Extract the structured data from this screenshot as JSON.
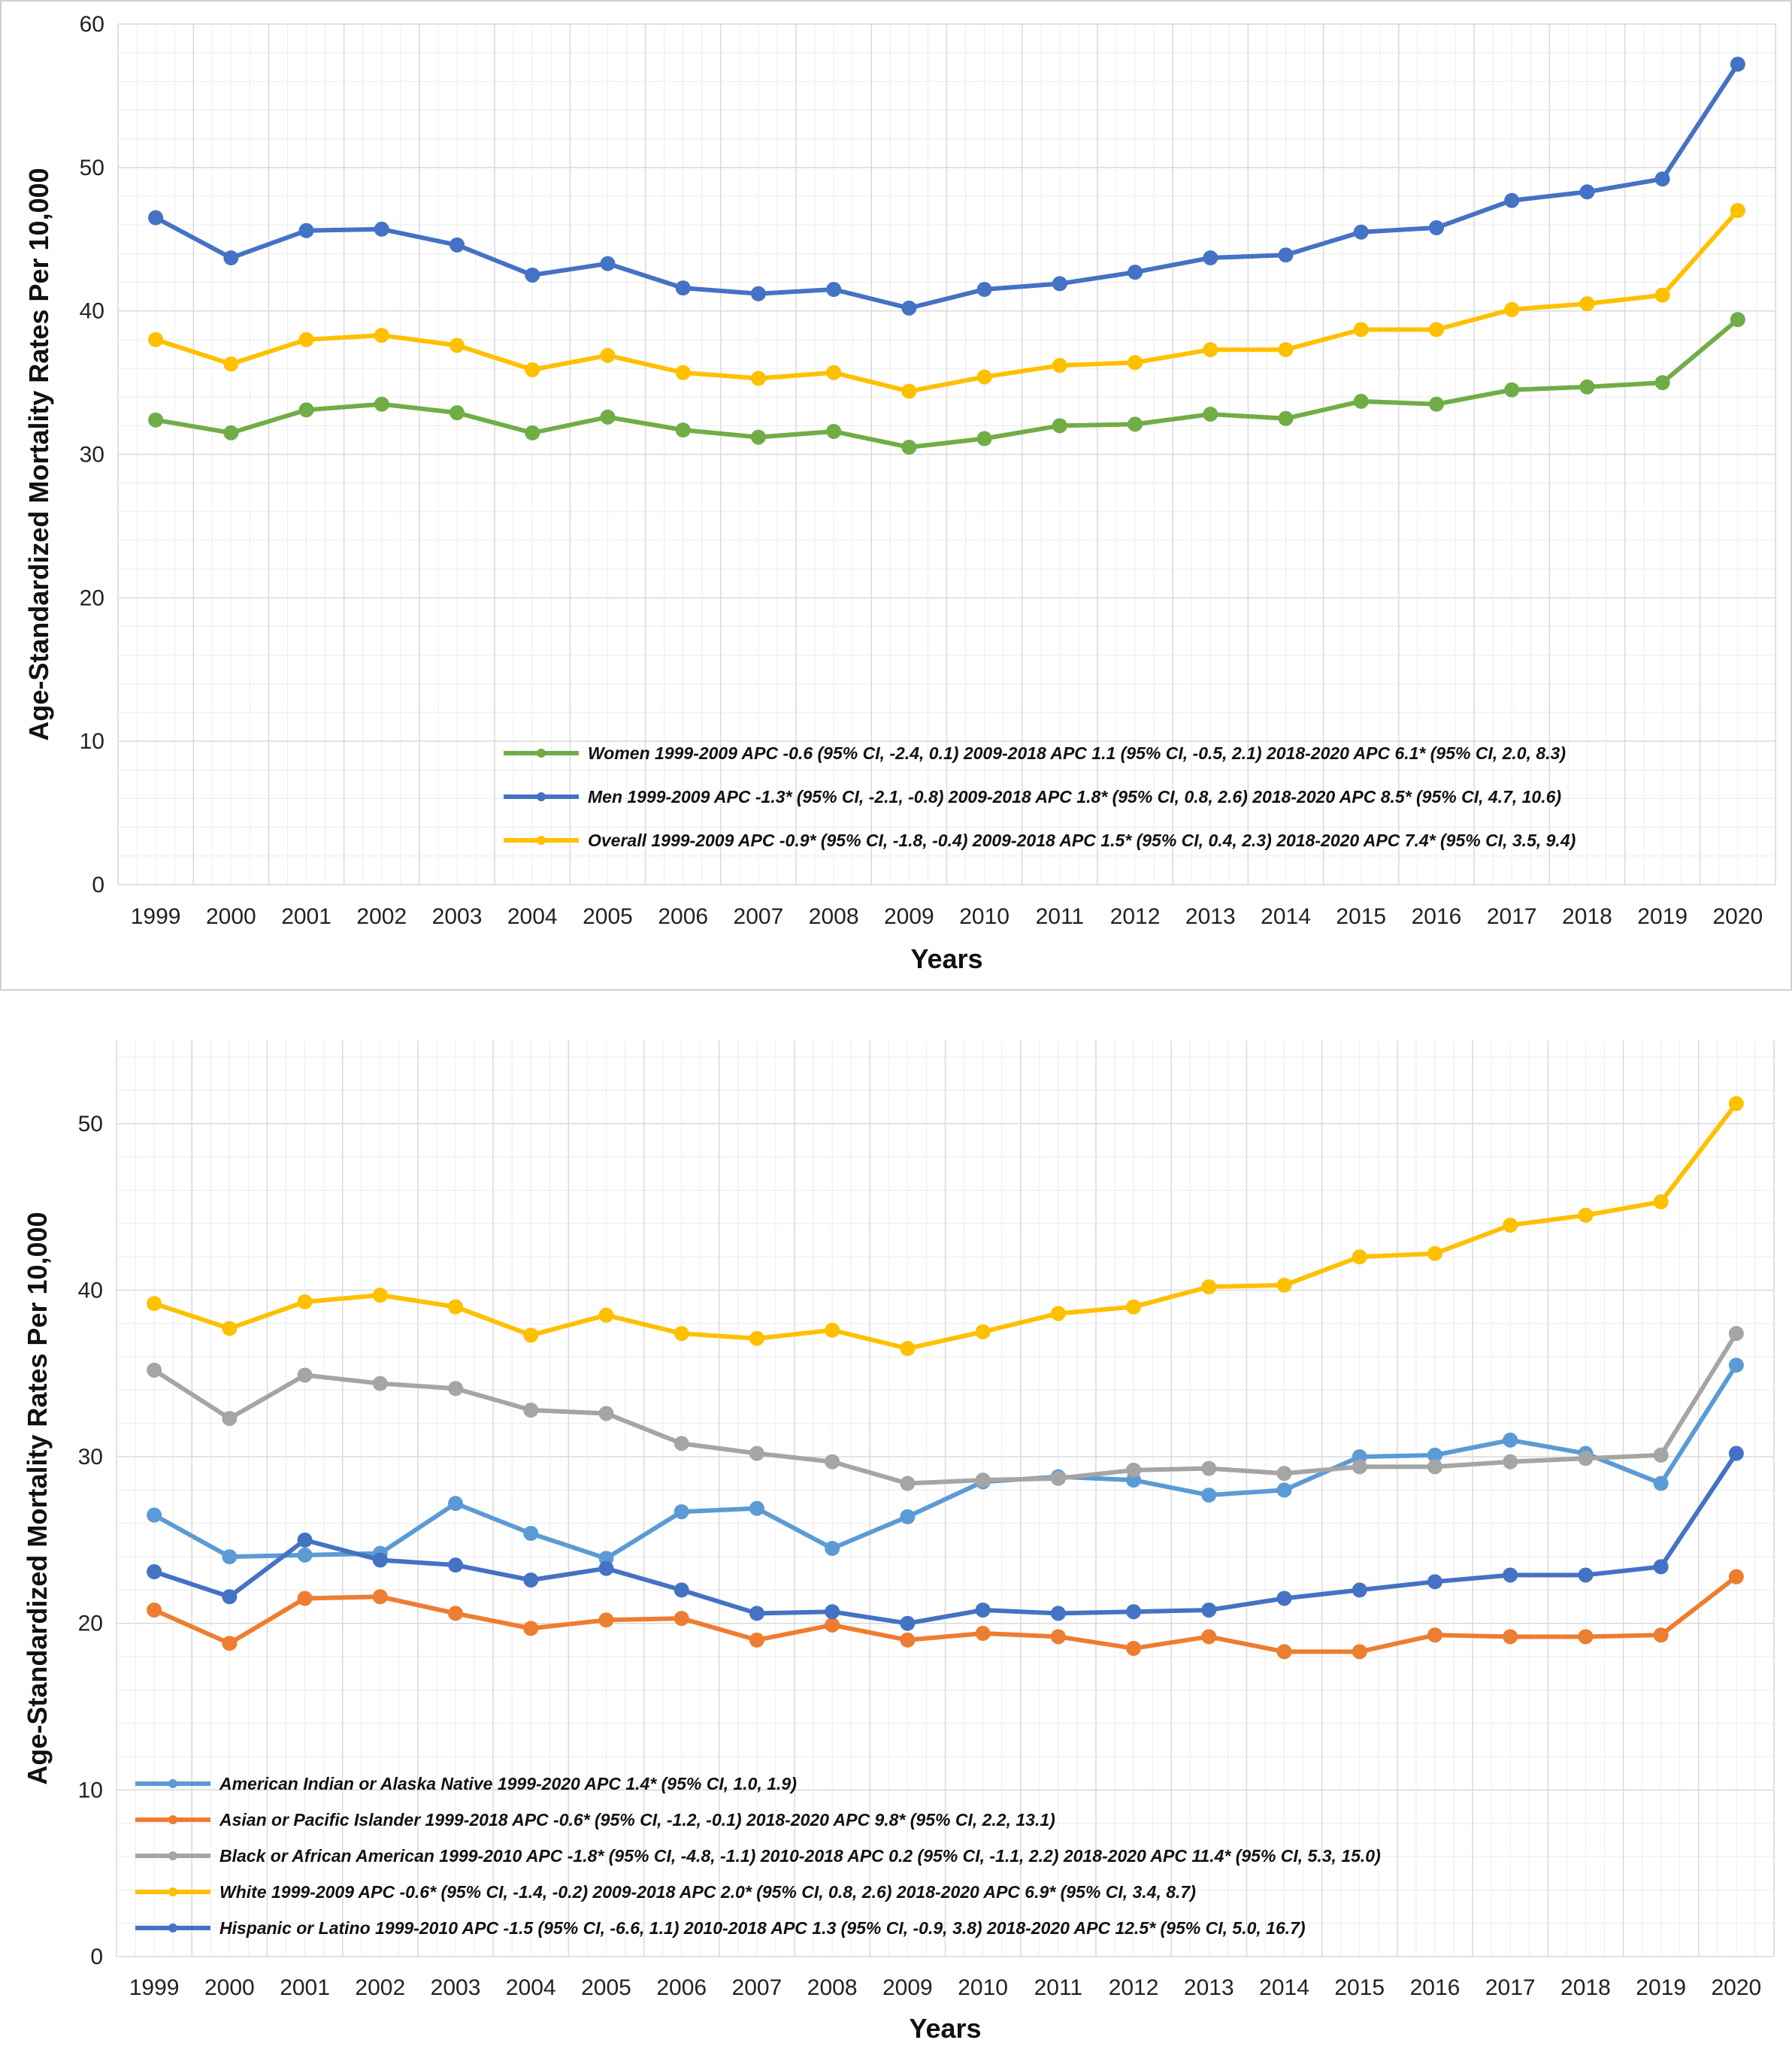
{
  "chart_data": [
    {
      "type": "line",
      "xlabel": "Years",
      "ylabel": "Age-Standardized Mortality Rates Per 10,000",
      "ylim": [
        0,
        60
      ],
      "yticks": [
        0,
        10,
        20,
        30,
        40,
        50,
        60
      ],
      "grid": true,
      "legend_position": "bottom-right",
      "categories": [
        "1999",
        "2000",
        "2001",
        "2002",
        "2003",
        "2004",
        "2005",
        "2006",
        "2007",
        "2008",
        "2009",
        "2010",
        "2011",
        "2012",
        "2013",
        "2014",
        "2015",
        "2016",
        "2017",
        "2018",
        "2019",
        "2020"
      ],
      "series": [
        {
          "name": "Women 1999-2009 APC -0.6 (95% CI, -2.4, 0.1) 2009-2018 APC 1.1 (95% CI, -0.5, 2.1) 2018-2020 APC 6.1* (95% CI, 2.0, 8.3)",
          "color": "#70ad47",
          "values": [
            32.4,
            31.5,
            33.1,
            33.5,
            32.9,
            31.5,
            32.6,
            31.7,
            31.2,
            31.6,
            30.5,
            31.1,
            32.0,
            32.1,
            32.8,
            32.5,
            33.7,
            33.5,
            34.5,
            34.7,
            35.0,
            39.4
          ]
        },
        {
          "name": "Men 1999-2009 APC -1.3* (95% CI, -2.1, -0.8) 2009-2018 APC 1.8* (95% CI, 0.8, 2.6) 2018-2020 APC 8.5* (95% CI, 4.7, 10.6)",
          "color": "#4472c4",
          "values": [
            46.5,
            43.7,
            45.6,
            45.7,
            44.6,
            42.5,
            43.3,
            41.6,
            41.2,
            41.5,
            40.2,
            41.5,
            41.9,
            42.7,
            43.7,
            43.9,
            45.5,
            45.8,
            47.7,
            48.3,
            49.2,
            57.2
          ]
        },
        {
          "name": "Overall 1999-2009 APC -0.9* (95% CI, -1.8, -0.4) 2009-2018 APC 1.5* (95% CI, 0.4, 2.3) 2018-2020 APC 7.4* (95% CI, 3.5, 9.4)",
          "color": "#ffc000",
          "values": [
            38.0,
            36.3,
            38.0,
            38.3,
            37.6,
            35.9,
            36.9,
            35.7,
            35.3,
            35.7,
            34.4,
            35.4,
            36.2,
            36.4,
            37.3,
            37.3,
            38.7,
            38.7,
            40.1,
            40.5,
            41.1,
            47.0
          ]
        }
      ]
    },
    {
      "type": "line",
      "xlabel": "Years",
      "ylabel": "Age-Standardized Mortality Rates Per 10,000",
      "ylim": [
        0,
        55
      ],
      "yticks": [
        0,
        10,
        20,
        30,
        40,
        50
      ],
      "grid": true,
      "legend_position": "bottom-left",
      "categories": [
        "1999",
        "2000",
        "2001",
        "2002",
        "2003",
        "2004",
        "2005",
        "2006",
        "2007",
        "2008",
        "2009",
        "2010",
        "2011",
        "2012",
        "2013",
        "2014",
        "2015",
        "2016",
        "2017",
        "2018",
        "2019",
        "2020"
      ],
      "series": [
        {
          "name": "American Indian or Alaska Native 1999-2020 APC 1.4* (95% CI, 1.0, 1.9)",
          "color": "#5b9bd5",
          "values": [
            26.5,
            24.0,
            24.1,
            24.2,
            27.2,
            25.4,
            23.9,
            26.7,
            26.9,
            24.5,
            26.4,
            28.5,
            28.8,
            28.6,
            27.7,
            28.0,
            30.0,
            30.1,
            31.0,
            30.2,
            28.4,
            35.5
          ]
        },
        {
          "name": "Asian or Pacific Islander 1999-2018 APC -0.6* (95% CI, -1.2, -0.1) 2018-2020 APC 9.8* (95% CI, 2.2, 13.1)",
          "color": "#ed7d31",
          "values": [
            20.8,
            18.8,
            21.5,
            21.6,
            20.6,
            19.7,
            20.2,
            20.3,
            19.0,
            19.9,
            19.0,
            19.4,
            19.2,
            18.5,
            19.2,
            18.3,
            18.3,
            19.3,
            19.2,
            19.2,
            19.3,
            22.8
          ]
        },
        {
          "name": "Black or African American 1999-2010 APC -1.8* (95% CI, -4.8, -1.1) 2010-2018 APC 0.2 (95% CI, -1.1, 2.2) 2018-2020 APC 11.4* (95% CI, 5.3, 15.0)",
          "color": "#a5a5a5",
          "values": [
            35.2,
            32.3,
            34.9,
            34.4,
            34.1,
            32.8,
            32.6,
            30.8,
            30.2,
            29.7,
            28.4,
            28.6,
            28.7,
            29.2,
            29.3,
            29.0,
            29.4,
            29.4,
            29.7,
            29.9,
            30.1,
            37.4
          ]
        },
        {
          "name": "White 1999-2009 APC -0.6* (95% CI, -1.4, -0.2) 2009-2018 APC 2.0* (95% CI, 0.8, 2.6) 2018-2020 APC 6.9* (95% CI, 3.4, 8.7)",
          "color": "#ffc000",
          "values": [
            39.2,
            37.7,
            39.3,
            39.7,
            39.0,
            37.3,
            38.5,
            37.4,
            37.1,
            37.6,
            36.5,
            37.5,
            38.6,
            39.0,
            40.2,
            40.3,
            42.0,
            42.2,
            43.9,
            44.5,
            45.3,
            51.2
          ]
        },
        {
          "name": "Hispanic or Latino 1999-2010 APC -1.5 (95% CI, -6.6, 1.1) 2010-2018 APC 1.3 (95% CI, -0.9, 3.8) 2018-2020 APC 12.5* (95% CI, 5.0, 16.7)",
          "color": "#4472c4",
          "values": [
            23.1,
            21.6,
            25.0,
            23.8,
            23.5,
            22.6,
            23.3,
            22.0,
            20.6,
            20.7,
            20.0,
            20.8,
            20.6,
            20.7,
            20.8,
            21.5,
            22.0,
            22.5,
            22.9,
            22.9,
            23.4,
            30.2
          ]
        }
      ]
    }
  ]
}
